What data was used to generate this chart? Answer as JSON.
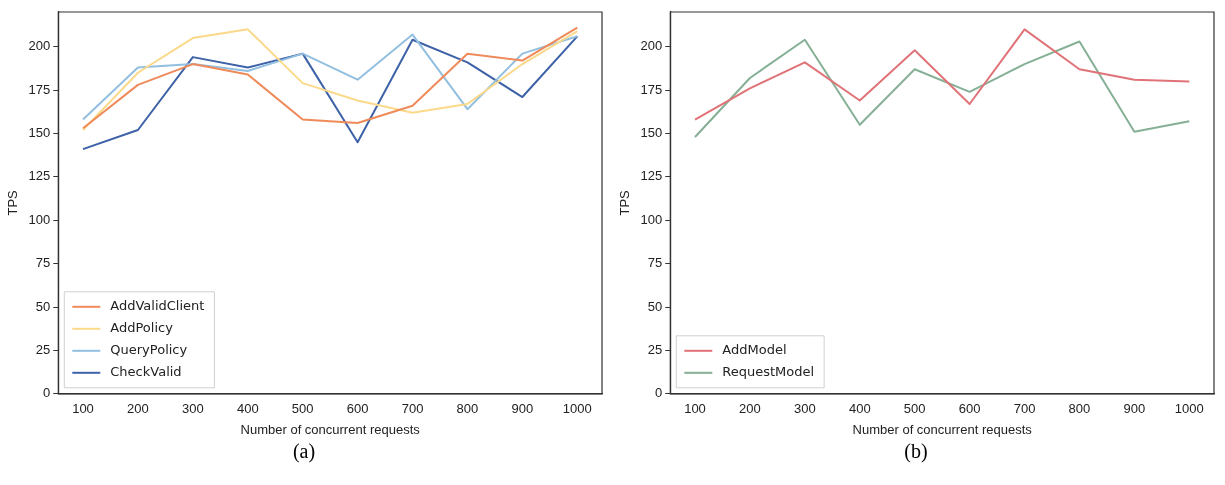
{
  "chart_data": [
    {
      "type": "line",
      "xlabel": "Number of concurrent requests",
      "ylabel": "TPS",
      "annotations": [
        "(a)"
      ],
      "x": [
        100,
        200,
        300,
        400,
        500,
        600,
        700,
        800,
        900,
        1000
      ],
      "xlim": [
        55,
        1045
      ],
      "xticks": [
        100,
        200,
        300,
        400,
        500,
        600,
        700,
        800,
        900,
        1000
      ],
      "ylim": [
        0,
        220
      ],
      "yticks": [
        0,
        25,
        50,
        75,
        100,
        125,
        150,
        175,
        200
      ],
      "grid": false,
      "legend": "bottom left",
      "marker": "none",
      "series": [
        {
          "name": "AddValidClient",
          "color": "#ef8a5a",
          "values": [
            153,
            178,
            190,
            184,
            158,
            156,
            166,
            196,
            192,
            211
          ]
        },
        {
          "name": "AddPolicy",
          "color": "#fbd98a",
          "values": [
            152,
            185,
            205,
            210,
            179,
            169,
            162,
            167,
            190,
            209
          ]
        },
        {
          "name": "QueryPolicy",
          "color": "#92bfe0",
          "values": [
            158,
            188,
            190,
            186,
            196,
            181,
            207,
            164,
            196,
            206
          ]
        },
        {
          "name": "CheckValid",
          "color": "#3e62a8",
          "values": [
            141,
            152,
            194,
            188,
            196,
            145,
            204,
            191,
            171,
            206
          ]
        }
      ]
    },
    {
      "type": "line",
      "xlabel": "Number of concurrent requests",
      "ylabel": "TPS",
      "annotations": [
        "(b)"
      ],
      "x": [
        100,
        200,
        300,
        400,
        500,
        600,
        700,
        800,
        900,
        1000
      ],
      "xlim": [
        55,
        1045
      ],
      "xticks": [
        100,
        200,
        300,
        400,
        500,
        600,
        700,
        800,
        900,
        1000
      ],
      "ylim": [
        0,
        220
      ],
      "yticks": [
        0,
        25,
        50,
        75,
        100,
        125,
        150,
        175,
        200
      ],
      "grid": false,
      "legend": "bottom left",
      "marker": "none",
      "series": [
        {
          "name": "AddModel",
          "color": "#e07378",
          "values": [
            158,
            176,
            191,
            169,
            198,
            167,
            210,
            187,
            181,
            180
          ]
        },
        {
          "name": "RequestModel",
          "color": "#86b096",
          "values": [
            148,
            182,
            204,
            155,
            187,
            174,
            190,
            203,
            151,
            157
          ]
        }
      ]
    }
  ]
}
